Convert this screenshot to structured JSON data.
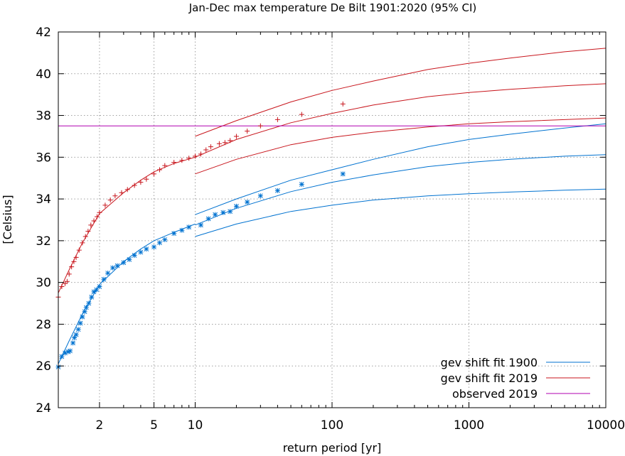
{
  "chart_data": {
    "type": "scatter",
    "title": "Jan-Dec max temperature De Bilt 1901:2020 (95% CI)",
    "xlabel": "return period [yr]",
    "ylabel": "[Celsius]",
    "xscale": "log",
    "xlim": [
      1,
      10000
    ],
    "ylim": [
      24,
      42
    ],
    "xticks": [
      2,
      5,
      10,
      100,
      1000,
      10000
    ],
    "xtick_labels": [
      "2",
      "5",
      "10",
      "100",
      "1000",
      "10000"
    ],
    "yticks": [
      24,
      26,
      28,
      30,
      32,
      34,
      36,
      38,
      40,
      42
    ],
    "ytick_labels": [
      "24",
      "26",
      "28",
      "30",
      "32",
      "34",
      "36",
      "38",
      "40",
      "42"
    ],
    "grid": true,
    "legend_position": "bottom-right",
    "legend": [
      {
        "label": "gev shift fit 1900",
        "color": "#0072d0"
      },
      {
        "label": "gev shift fit 2019",
        "color": "#c8161d"
      },
      {
        "label": "observed 2019",
        "color": "#b000b0"
      }
    ],
    "series": [
      {
        "name": "gev shift fit 1900",
        "kind": "fit",
        "color": "#0072d0",
        "central": {
          "x": [
            1,
            1.2,
            1.5,
            2,
            3,
            4,
            5,
            7,
            10
          ],
          "y": [
            26.1,
            27.2,
            28.5,
            29.9,
            31.0,
            31.6,
            32.0,
            32.4,
            32.8
          ]
        },
        "ci_low": {
          "x": [
            10,
            20,
            50,
            100,
            200,
            500,
            1000,
            2000,
            5000,
            10000
          ],
          "y": [
            32.2,
            32.8,
            33.4,
            33.7,
            33.95,
            34.15,
            34.25,
            34.33,
            34.42,
            34.47
          ]
        },
        "ci_mid": {
          "x": [
            10,
            20,
            50,
            100,
            200,
            500,
            1000,
            2000,
            5000,
            10000
          ],
          "y": [
            32.75,
            33.55,
            34.35,
            34.8,
            35.15,
            35.55,
            35.75,
            35.9,
            36.05,
            36.12
          ]
        },
        "ci_high": {
          "x": [
            10,
            20,
            50,
            100,
            200,
            500,
            1000,
            2000,
            5000,
            10000
          ],
          "y": [
            33.25,
            34.0,
            34.9,
            35.4,
            35.9,
            36.5,
            36.85,
            37.1,
            37.4,
            37.6
          ]
        }
      },
      {
        "name": "gev shift fit 2019",
        "kind": "fit",
        "color": "#c8161d",
        "central": {
          "x": [
            1,
            1.2,
            1.5,
            2,
            3,
            4,
            5,
            7,
            10
          ],
          "y": [
            29.5,
            30.6,
            31.9,
            33.3,
            34.3,
            34.9,
            35.3,
            35.7,
            36.0
          ]
        },
        "ci_low": {
          "x": [
            10,
            20,
            50,
            100,
            200,
            500,
            1000,
            2000,
            5000,
            10000
          ],
          "y": [
            35.2,
            35.9,
            36.6,
            36.95,
            37.2,
            37.45,
            37.6,
            37.7,
            37.8,
            37.88
          ]
        },
        "ci_mid": {
          "x": [
            10,
            20,
            50,
            100,
            200,
            500,
            1000,
            2000,
            5000,
            10000
          ],
          "y": [
            36.0,
            36.85,
            37.65,
            38.1,
            38.5,
            38.9,
            39.1,
            39.25,
            39.42,
            39.52
          ]
        },
        "ci_high": {
          "x": [
            10,
            20,
            50,
            100,
            200,
            500,
            1000,
            2000,
            5000,
            10000
          ],
          "y": [
            37.0,
            37.75,
            38.65,
            39.2,
            39.65,
            40.2,
            40.5,
            40.75,
            41.05,
            41.22
          ]
        }
      },
      {
        "name": "observed 2019",
        "kind": "hline",
        "color": "#b000b0",
        "y": 37.5
      },
      {
        "name": "",
        "kind": "points",
        "marker": "asterisk",
        "color": "#0072d0",
        "x": [
          1.0,
          1.06,
          1.12,
          1.18,
          1.22,
          1.28,
          1.31,
          1.35,
          1.4,
          1.45,
          1.5,
          1.56,
          1.6,
          1.67,
          1.75,
          1.82,
          1.9,
          2.0,
          2.15,
          2.3,
          2.5,
          2.7,
          3.0,
          3.3,
          3.6,
          4.0,
          4.4,
          5.0,
          5.5,
          6.0,
          7.0,
          8.0,
          9.0,
          11.0,
          12.5,
          14.0,
          16.0,
          18.0,
          20.0,
          24.0,
          30.0,
          40.0,
          60.0,
          120.0
        ],
        "y": [
          25.95,
          26.45,
          26.62,
          26.68,
          26.72,
          27.1,
          27.35,
          27.5,
          27.75,
          28.05,
          28.35,
          28.6,
          28.8,
          29.0,
          29.3,
          29.55,
          29.65,
          29.8,
          30.15,
          30.45,
          30.7,
          30.8,
          30.95,
          31.1,
          31.3,
          31.45,
          31.6,
          31.7,
          31.9,
          32.05,
          32.35,
          32.5,
          32.65,
          32.75,
          33.05,
          33.25,
          33.35,
          33.4,
          33.65,
          33.85,
          34.15,
          34.4,
          34.7,
          35.2
        ]
      },
      {
        "name": "",
        "kind": "points",
        "marker": "plus",
        "color": "#c8161d",
        "x": [
          1.0,
          1.06,
          1.12,
          1.16,
          1.2,
          1.25,
          1.3,
          1.35,
          1.42,
          1.5,
          1.58,
          1.65,
          1.73,
          1.82,
          1.92,
          2.0,
          2.2,
          2.4,
          2.6,
          2.9,
          3.2,
          3.6,
          4.0,
          4.4,
          5.0,
          5.5,
          6.0,
          7.0,
          8.0,
          9.0,
          10.0,
          11.0,
          12.0,
          13.0,
          15.0,
          16.5,
          18.0,
          20.0,
          24.0,
          30.0,
          40.0,
          60.0,
          120.0
        ],
        "y": [
          29.3,
          29.8,
          29.95,
          30.05,
          30.4,
          30.75,
          31.0,
          31.2,
          31.55,
          31.9,
          32.2,
          32.45,
          32.75,
          32.95,
          33.15,
          33.35,
          33.7,
          33.95,
          34.15,
          34.3,
          34.45,
          34.65,
          34.8,
          34.95,
          35.2,
          35.4,
          35.6,
          35.75,
          35.85,
          35.95,
          36.05,
          36.15,
          36.35,
          36.5,
          36.65,
          36.7,
          36.8,
          37.0,
          37.25,
          37.5,
          37.8,
          38.05,
          38.55
        ]
      }
    ]
  }
}
